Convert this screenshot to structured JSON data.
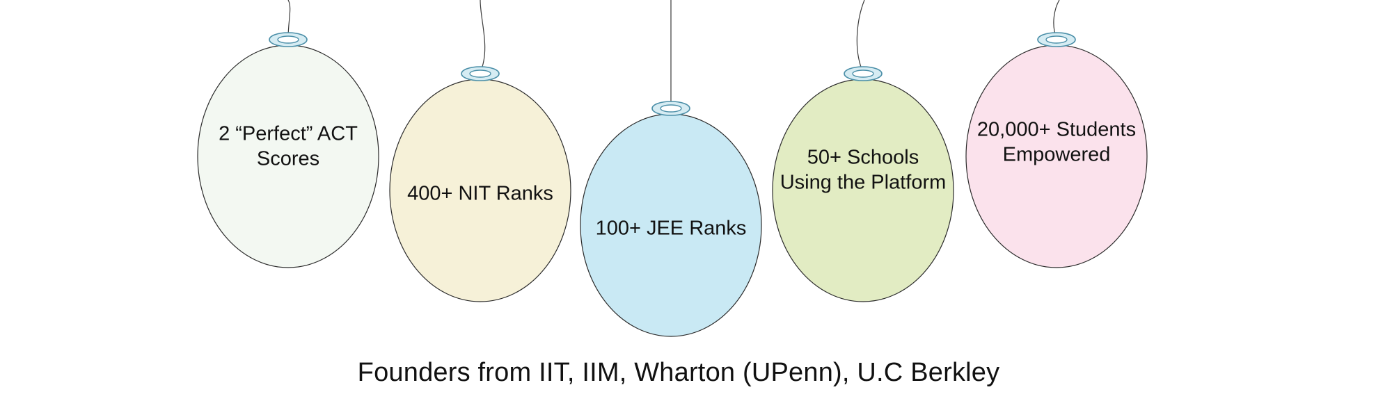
{
  "balloons": [
    {
      "lines": [
        "2 “Perfect” ACT",
        "Scores"
      ],
      "color": "#f3f8f2"
    },
    {
      "lines": [
        "400+ NIT Ranks"
      ],
      "color": "#f6f1d8"
    },
    {
      "lines": [
        "100+ JEE Ranks"
      ],
      "color": "#c9e9f4"
    },
    {
      "lines": [
        "50+ Schools",
        "Using the Platform"
      ],
      "color": "#e2ecc3"
    },
    {
      "lines": [
        "20,000+ Students",
        "Empowered"
      ],
      "color": "#fbe2ec"
    }
  ],
  "footer": {
    "text": "Founders from IIT, IIM, Wharton (UPenn), U.C Berkley"
  },
  "colors": {
    "ring_fill": "#d6ecf3",
    "ring_stroke": "#4b8fa8",
    "outline": "#2a2a2a"
  }
}
